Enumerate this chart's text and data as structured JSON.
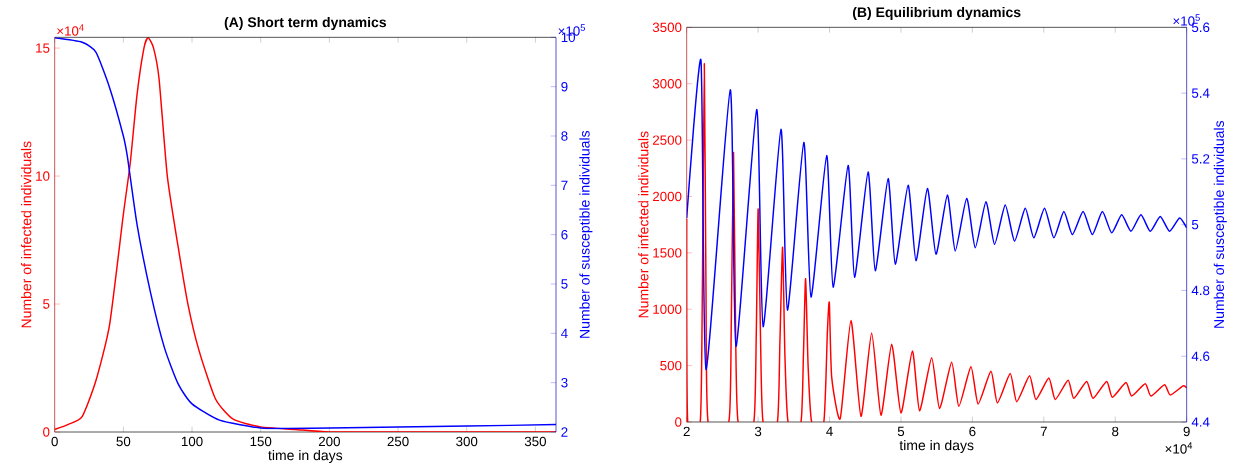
{
  "chart_data": [
    {
      "type": "line",
      "title": "(A) Short term dynamics",
      "xlabel": "time in days",
      "ylabel": "Number of infected individuals",
      "y2label": "Number of susceptible individuals",
      "xlim": [
        0,
        365
      ],
      "xticks": [
        0,
        50,
        100,
        150,
        200,
        250,
        300,
        350
      ],
      "ylim": [
        0,
        15.42
      ],
      "yticks": [
        0,
        5,
        10,
        15
      ],
      "y2lim": [
        2,
        10
      ],
      "y2ticks": [
        2,
        3,
        4,
        5,
        6,
        7,
        8,
        9,
        10
      ],
      "annotations": [
        "×10$^{4}$",
        "×10$^{5}$"
      ],
      "series": [
        {
          "color": "#ff0000",
          "x": [
            0,
            10,
            20,
            30,
            40,
            50,
            55,
            60,
            65,
            68,
            72,
            76,
            82,
            90,
            97,
            105,
            117,
            130,
            150,
            175,
            200,
            250,
            365
          ],
          "values": [
            0.1,
            0.3,
            0.6,
            2,
            4.2,
            8.5,
            10.5,
            13.2,
            15,
            15.4,
            15,
            13.8,
            10,
            7.2,
            5,
            3.2,
            1.3,
            0.5,
            0.2,
            0.1,
            0,
            0,
            0
          ]
        },
        {
          "color": "#0000ff",
          "axis": "y2",
          "x": [
            0,
            20,
            30,
            40,
            50,
            53,
            60,
            70,
            80,
            90,
            100,
            120,
            150,
            170,
            200,
            250,
            300,
            365
          ],
          "values": [
            9.99,
            9.9,
            9.7,
            8.98,
            8,
            7.57,
            6.2,
            4.8,
            3.7,
            2.97,
            2.57,
            2.24,
            2.08,
            2.07,
            2.08,
            2.1,
            2.12,
            2.15
          ]
        }
      ]
    },
    {
      "type": "line",
      "title": "(B) Equilibrium dynamics",
      "xlabel": "time in days",
      "ylabel": "Number of infected individuals",
      "y2label": "Number of susceptible individuals",
      "xlim": [
        2,
        9
      ],
      "xticks": [
        2,
        3,
        4,
        5,
        6,
        7,
        8,
        9
      ],
      "ylim": [
        0,
        3500
      ],
      "yticks": [
        0,
        500,
        1000,
        1500,
        2000,
        2500,
        3000,
        3500
      ],
      "y2lim": [
        4.4,
        5.6
      ],
      "y2ticks": [
        4.4,
        4.6,
        4.8,
        5,
        5.2,
        5.4,
        5.6
      ],
      "annotations": [
        "×10$^{5}$",
        "×10$^{4}$"
      ],
      "series": [
        {
          "color": "#ff0000",
          "x": [
            2,
            2.015,
            2.19,
            2.22,
            2.247,
            2.27,
            2.3,
            2.59,
            2.625,
            2.656,
            2.685,
            2.72,
            2.94,
            2.975,
            3.001,
            3.035,
            3.07,
            3.27,
            3.305,
            3.343,
            3.375,
            3.42,
            3.6,
            3.635,
            3.665,
            3.7,
            3.75,
            3.92,
            3.97,
            3.997,
            4.03,
            4.15,
            4.3,
            4.44,
            4.59,
            4.72,
            4.87,
            5,
            5.16,
            5.26,
            5.43,
            5.54,
            5.71,
            5.81,
            5.98,
            6.08,
            6.26,
            6.35,
            6.53,
            6.62,
            6.8,
            6.89,
            7.07,
            7.16,
            7.34,
            7.42,
            7.6,
            7.69,
            7.88,
            7.96,
            8.15,
            8.23,
            8.42,
            8.5,
            8.69,
            8.77,
            8.95,
            9
          ],
          "values": [
            1800,
            0,
            0,
            1200,
            3180,
            1200,
            0,
            0,
            900,
            2390,
            800,
            0,
            0,
            800,
            1890,
            700,
            0,
            0,
            700,
            1550,
            600,
            0,
            0,
            600,
            1270,
            500,
            0,
            0,
            800,
            1060,
            400,
            30,
            900,
            50,
            790,
            60,
            690,
            80,
            630,
            100,
            570,
            120,
            530,
            140,
            490,
            160,
            450,
            170,
            430,
            180,
            410,
            200,
            390,
            200,
            370,
            210,
            360,
            210,
            360,
            220,
            350,
            230,
            340,
            230,
            330,
            240,
            320,
            300
          ]
        },
        {
          "color": "#0000ff",
          "axis": "y2",
          "x": [
            2,
            2.2,
            2.27,
            2.61,
            2.69,
            2.98,
            3.07,
            3.32,
            3.41,
            3.64,
            3.74,
            3.96,
            4.05,
            4.26,
            4.35,
            4.54,
            4.64,
            4.82,
            4.92,
            5.1,
            5.21,
            5.37,
            5.49,
            5.65,
            5.76,
            5.92,
            6.04,
            6.19,
            6.31,
            6.46,
            6.59,
            6.74,
            6.86,
            7.01,
            7.14,
            7.28,
            7.4,
            7.55,
            7.68,
            7.82,
            7.95,
            8.09,
            8.22,
            8.36,
            8.49,
            8.63,
            8.76,
            8.9,
            9
          ],
          "values": [
            5.02,
            5.5,
            4.56,
            5.41,
            4.63,
            5.35,
            4.69,
            5.29,
            4.74,
            5.25,
            4.78,
            5.21,
            4.81,
            5.18,
            4.84,
            5.16,
            4.86,
            5.14,
            4.88,
            5.12,
            4.89,
            5.11,
            4.91,
            5.09,
            4.92,
            5.08,
            4.93,
            5.07,
            4.94,
            5.06,
            4.95,
            5.05,
            4.96,
            5.05,
            4.96,
            5.04,
            4.97,
            5.04,
            4.97,
            5.04,
            4.975,
            5.03,
            4.98,
            5.03,
            4.98,
            5.025,
            4.98,
            5.02,
            4.99
          ]
        }
      ]
    }
  ]
}
